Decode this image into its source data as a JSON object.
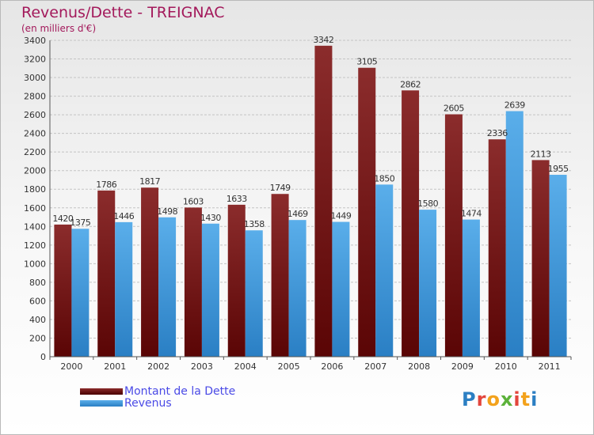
{
  "header": {
    "title": "Revenus/Dette - TREIGNAC",
    "subtitle": "(en milliers d'€)"
  },
  "legend": {
    "items": [
      {
        "label": "Montant de la Dette",
        "color": "#7a1c1c"
      },
      {
        "label": "Revenus",
        "color": "#4aa0e0"
      }
    ]
  },
  "logo": {
    "letters": [
      "P",
      "r",
      "o",
      "x",
      "i",
      "t",
      "i"
    ]
  },
  "chart_data": {
    "type": "bar",
    "title": "Revenus/Dette - TREIGNAC",
    "subtitle": "(en milliers d'€)",
    "xlabel": "",
    "ylabel": "",
    "categories": [
      "2000",
      "2001",
      "2002",
      "2003",
      "2004",
      "2005",
      "2006",
      "2007",
      "2008",
      "2009",
      "2010",
      "2011"
    ],
    "series": [
      {
        "name": "Montant de la Dette",
        "color": "#7a1c1c",
        "values": [
          1420,
          1786,
          1817,
          1603,
          1633,
          1749,
          3342,
          3105,
          2862,
          2605,
          2336,
          2113
        ]
      },
      {
        "name": "Revenus",
        "color": "#4aa0e0",
        "values": [
          1375,
          1446,
          1498,
          1430,
          1358,
          1469,
          1449,
          1850,
          1580,
          1474,
          2639,
          1955
        ]
      }
    ],
    "ylim": [
      0,
      3400
    ],
    "yticks": [
      "0",
      "200",
      "400",
      "600",
      "800",
      "1000",
      "1200",
      "1400",
      "1600",
      "1800",
      "2000",
      "2200",
      "2400",
      "2600",
      "2800",
      "3000",
      "3200",
      "3400"
    ],
    "grid": true,
    "legend_position": "bottom-left"
  }
}
